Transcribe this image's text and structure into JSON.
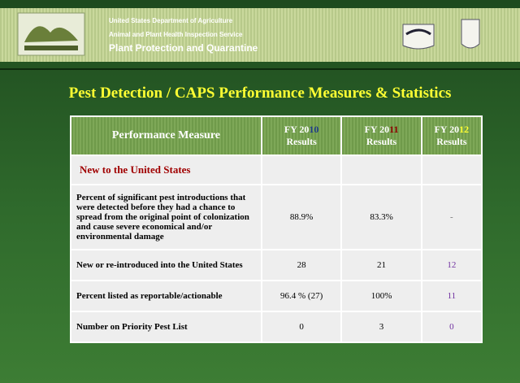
{
  "header": {
    "agency": "United States Department of Agriculture",
    "service": "Animal and Plant Health Inspection Service",
    "program": "Plant Protection and Quarantine"
  },
  "title": "Pest Detection / CAPS Performance Measures & Statistics",
  "table": {
    "columns": [
      {
        "text": "Performance Measure"
      },
      {
        "prefix": "FY 20",
        "year": "10",
        "label": "Results"
      },
      {
        "prefix": "FY 20",
        "year": "11",
        "label": "Results"
      },
      {
        "prefix": "FY 20",
        "year": "12",
        "label": "Results"
      }
    ],
    "section": "New to the United States",
    "rows": [
      [
        "Percent of significant pest introductions that were detected before they had a chance to spread from the original point of colonization and cause severe economical and/or environmental damage",
        "88.9%",
        "83.3%",
        "-"
      ],
      [
        "New or re-introduced into the United States",
        "28",
        "21",
        "12"
      ],
      [
        "Percent listed as reportable/actionable",
        "96.4 % (27)",
        "100%",
        "11"
      ],
      [
        "Number on Priority Pest List",
        "0",
        "3",
        "0"
      ]
    ]
  }
}
